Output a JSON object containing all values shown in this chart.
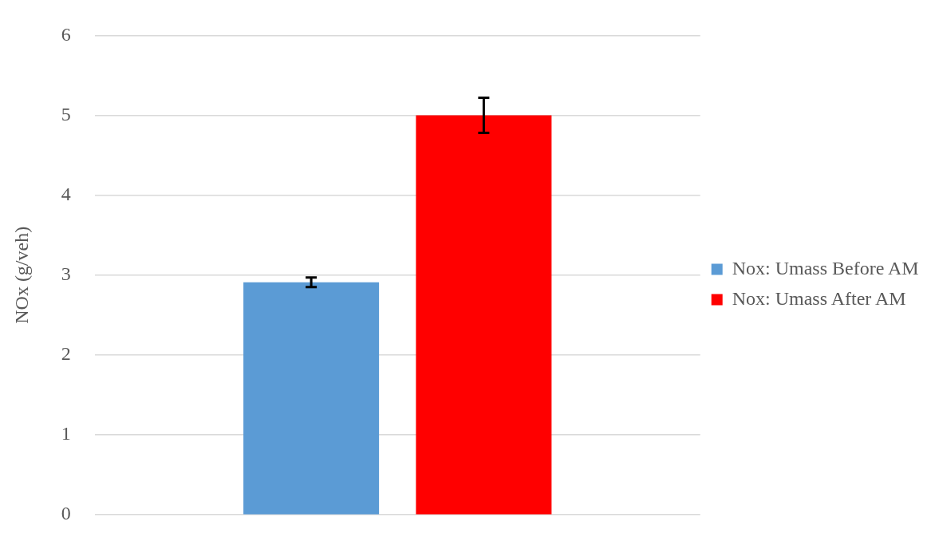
{
  "chart_data": {
    "type": "bar",
    "ylabel": "NOx (g/veh)",
    "categories": [
      null
    ],
    "series": [
      {
        "name": "Nox: Umass Before AM",
        "color": "#5b9bd5",
        "values": [
          2.91
        ],
        "errors": [
          0.06
        ]
      },
      {
        "name": "Nox: Umass After AM",
        "color": "#ff0000",
        "values": [
          5.0
        ],
        "errors": [
          0.22
        ]
      }
    ],
    "ylim": [
      0,
      6
    ],
    "yticks": [
      0,
      1,
      2,
      3,
      4,
      5,
      6
    ],
    "grid": "y",
    "legend": "right"
  }
}
